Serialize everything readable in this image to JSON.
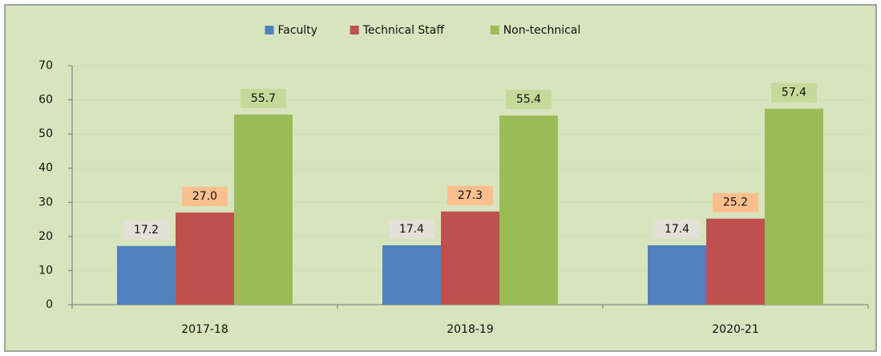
{
  "chart_data": {
    "type": "bar",
    "categories": [
      "2017-18",
      "2018-19",
      "2020-21"
    ],
    "series": [
      {
        "name": "Faculty",
        "color": "#4f81bd",
        "values": [
          17.2,
          17.4,
          17.4
        ]
      },
      {
        "name": "Technical Staff",
        "color": "#c0504d",
        "values": [
          27.0,
          27.3,
          25.2
        ],
        "value_labels": [
          "27.0",
          "27.3",
          "25.2"
        ]
      },
      {
        "name": "Non-technical",
        "color": "#9bbb59",
        "values": [
          55.7,
          55.4,
          57.4
        ]
      }
    ],
    "ylim": [
      0,
      70
    ],
    "yticks": [
      0,
      10,
      20,
      30,
      40,
      50,
      60,
      70
    ],
    "grid": true,
    "legend": "top"
  }
}
